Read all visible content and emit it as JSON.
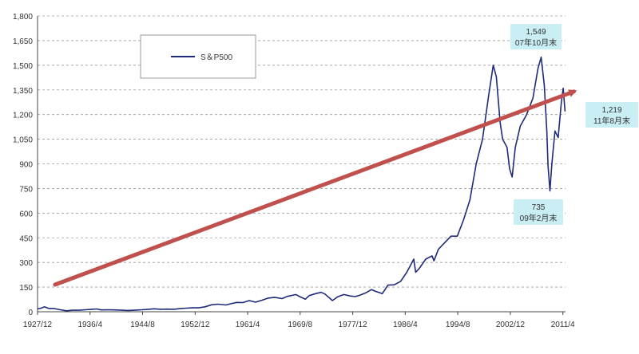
{
  "chart_data": {
    "type": "line",
    "title": "",
    "xlabel": "",
    "ylabel": "",
    "ylim": [
      0,
      1800
    ],
    "y_ticks": [
      0,
      150,
      300,
      450,
      600,
      750,
      900,
      1050,
      1200,
      1350,
      1500,
      1650,
      1800
    ],
    "y_tick_labels": [
      "0",
      "150",
      "300",
      "450",
      "600",
      "750",
      "900",
      "1,050",
      "1,200",
      "1,350",
      "1,500",
      "1,650",
      "1,800"
    ],
    "x_tick_labels": [
      "1927/12",
      "1936/4",
      "1944/8",
      "1952/12",
      "1961/4",
      "1969/8",
      "1977/12",
      "1986/4",
      "1994/8",
      "2002/12",
      "2011/4"
    ],
    "x_ticks": [
      1927.92,
      1936.25,
      1944.58,
      1952.92,
      1961.25,
      1969.58,
      1977.92,
      1986.25,
      1994.58,
      2002.92,
      2011.25
    ],
    "xlim": [
      1927.92,
      2011.67
    ],
    "grid": "horizontal dashed",
    "legend": {
      "position": "top-left",
      "entries": [
        "S＆P500"
      ]
    },
    "series": [
      {
        "name": "S＆P500",
        "color": "#1f2a7a",
        "x": [
          1927.9,
          1928.5,
          1929.0,
          1929.7,
          1930.5,
          1931.5,
          1932.5,
          1933.5,
          1934.5,
          1935.5,
          1936.5,
          1937.3,
          1938.0,
          1939.0,
          1940.0,
          1941.0,
          1942.3,
          1943.5,
          1944.5,
          1945.5,
          1946.4,
          1947.5,
          1948.5,
          1949.5,
          1950.5,
          1951.5,
          1952.5,
          1953.5,
          1954.5,
          1955.5,
          1956.5,
          1957.8,
          1958.5,
          1959.5,
          1960.5,
          1961.5,
          1962.5,
          1963.5,
          1964.5,
          1965.5,
          1966.7,
          1967.5,
          1968.9,
          1969.5,
          1970.4,
          1971.0,
          1972.0,
          1972.9,
          1973.5,
          1974.7,
          1975.5,
          1976.5,
          1977.5,
          1978.3,
          1979.0,
          1980.0,
          1980.9,
          1981.5,
          1982.6,
          1983.5,
          1984.5,
          1985.5,
          1986.5,
          1987.6,
          1987.9,
          1988.5,
          1989.5,
          1990.5,
          1990.8,
          1991.5,
          1992.5,
          1993.5,
          1994.5,
          1995.5,
          1996.5,
          1997.5,
          1998.5,
          1999.5,
          2000.2,
          2000.7,
          2001.3,
          2001.7,
          2002.4,
          2002.8,
          2003.2,
          2003.7,
          2004.5,
          2005.5,
          2006.5,
          2007.3,
          2007.8,
          2008.3,
          2008.7,
          2008.9,
          2009.2,
          2009.5,
          2010.0,
          2010.5,
          2011.0,
          2011.3,
          2011.6
        ],
        "values": [
          17,
          22,
          30,
          20,
          20,
          12,
          6,
          9,
          9,
          12,
          15,
          17,
          11,
          12,
          11,
          10,
          8,
          10,
          12,
          15,
          18,
          15,
          16,
          15,
          19,
          22,
          24,
          24,
          30,
          42,
          46,
          41,
          48,
          57,
          56,
          68,
          58,
          70,
          83,
          88,
          80,
          93,
          105,
          92,
          76,
          98,
          110,
          118,
          108,
          68,
          90,
          105,
          96,
          92,
          100,
          115,
          135,
          125,
          110,
          162,
          164,
          185,
          240,
          320,
          240,
          265,
          320,
          340,
          310,
          380,
          420,
          460,
          460,
          560,
          680,
          900,
          1050,
          1320,
          1500,
          1430,
          1150,
          1050,
          1000,
          870,
          820,
          1000,
          1130,
          1200,
          1300,
          1480,
          1549,
          1380,
          1100,
          890,
          735,
          900,
          1100,
          1060,
          1270,
          1360,
          1219
        ]
      },
      {
        "name": "",
        "color": "#c0504d",
        "x": [
          1930.7,
          2013.0
        ],
        "values": [
          165,
          1340
        ]
      }
    ],
    "annotations": [
      {
        "value_label": "1,549",
        "date_label": "07年10月末"
      },
      {
        "value_label": "1,219",
        "date_label": "11年8月末"
      },
      {
        "value_label": "735",
        "date_label": "09年2月末"
      }
    ]
  }
}
